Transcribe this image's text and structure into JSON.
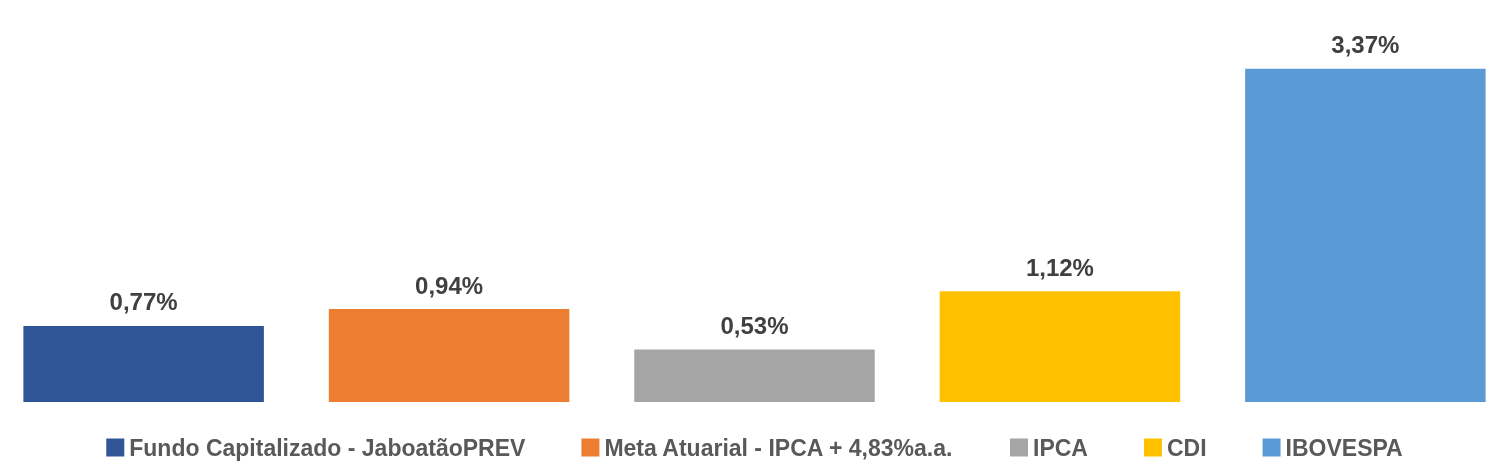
{
  "chart_data": {
    "type": "bar",
    "categories": [
      null
    ],
    "legend": "bottom",
    "grid": false,
    "series": [
      {
        "name": "Fundo Capitalizado - JaboatãoPREV",
        "color": "#2f5597",
        "values": [
          0.77
        ],
        "value_labels": [
          "0,77%"
        ]
      },
      {
        "name": "Meta Atuarial - IPCA + 4,83%a.a.",
        "color": "#ed7d31",
        "values": [
          0.94
        ],
        "value_labels": [
          "0,94%"
        ]
      },
      {
        "name": "IPCA",
        "color": "#a5a5a5",
        "values": [
          0.53
        ],
        "value_labels": [
          "0,53%"
        ]
      },
      {
        "name": "CDI",
        "color": "#ffc000",
        "values": [
          1.12
        ],
        "value_labels": [
          "1,12%"
        ]
      },
      {
        "name": "IBOVESPA",
        "color": "#5b9bd5",
        "values": [
          3.37
        ],
        "value_labels": [
          "3,37%"
        ]
      }
    ]
  }
}
